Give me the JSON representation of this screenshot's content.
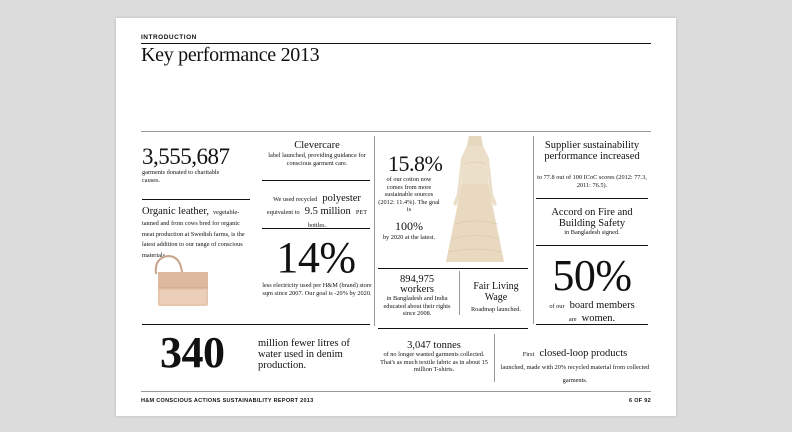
{
  "header": {
    "section": "INTRODUCTION",
    "title": "Key performance 2013"
  },
  "col1": {
    "garments_number": "3,555,687",
    "garments_text": "garments donated to charitable causes.",
    "leather_title": "Organic leather,",
    "leather_text1": "vegetable-",
    "leather_text2": "tanned and from cows bred for organic meat production at Swedish farms, is the latest addition to our range of conscious materials."
  },
  "col2": {
    "clevercare_title": "Clevercare",
    "clevercare_text": "label launched, providing guidance for conscious garment care.",
    "polyester_pre": "We used recycled",
    "polyester_bold": "polyester",
    "polyester_mid": "equivalent to",
    "polyester_num": "9.5 million",
    "polyester_post": "PET bottles.",
    "electricity_pct": "14%",
    "electricity_text": "less electricity used per H&M (brand) store sqm since 2007. Our goal is -20% by 2020."
  },
  "col3": {
    "cotton_pct": "15.8%",
    "cotton_text": "of our cotton now comes from more sustainable sources (2012: 11.4%). The goal is",
    "cotton_goal": "100%",
    "cotton_goal_text": "by 2020 at the latest.",
    "workers_num": "894,975",
    "workers_label": "workers",
    "workers_text": "in Bangladesh and India educated about their rights since 2008.",
    "wage_title": "Fair Living Wage",
    "wage_text": "Roadmap launched."
  },
  "col4": {
    "supplier_title": "Supplier sustainability performance increased",
    "supplier_text": "to 77.8 out of 100 ICoC scores (2012: 77.3, 2011: 76.5).",
    "accord_title": "Accord on Fire and Building Safety",
    "accord_text": "in Bangladesh signed.",
    "board_pct": "50%",
    "board_pre": "of our",
    "board_bold": "board members",
    "board_mid": "are",
    "board_women": "women."
  },
  "bottom": {
    "water_number": "340",
    "water_text": "million fewer litres of water used in denim production.",
    "tonnes_title": "3,047 tonnes",
    "tonnes_text": "of no longer wanted garments collected. That's as much textile fabric as in about 15 million T-shirts.",
    "loop_pre": "First",
    "loop_bold": "closed-loop products",
    "loop_text": "launched, made with 20% recycled material from collected garments."
  },
  "footer": {
    "left": "H&M CONSCIOUS ACTIONS SUSTAINABILITY REPORT 2013",
    "right": "6 OF 92"
  }
}
